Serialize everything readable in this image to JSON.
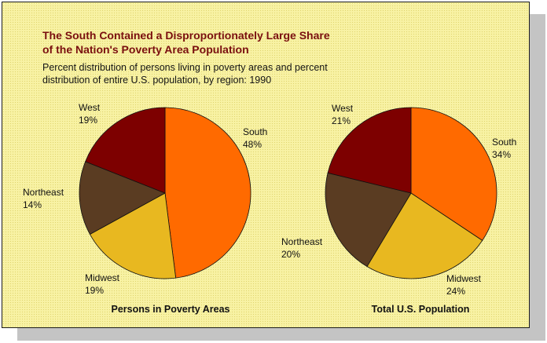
{
  "title_lines": [
    "The South Contained a Disproportionately Large Share",
    "of the Nation's Poverty Area Population"
  ],
  "subtitle_lines": [
    "Percent distribution of persons living in poverty areas and percent",
    "distribution of entire U.S. population, by region: 1990"
  ],
  "colors": {
    "South": "#ff6a00",
    "Midwest": "#e8b820",
    "Northeast": "#5a3c22",
    "West": "#7d0000",
    "background": "#f8f2a4",
    "title": "#7a0f0f"
  },
  "chart_data": [
    {
      "type": "pie",
      "title": "Persons in Poverty Areas",
      "slices": [
        {
          "label": "South",
          "value_label": "48%",
          "value": 48
        },
        {
          "label": "Midwest",
          "value_label": "19%",
          "value": 19
        },
        {
          "label": "Northeast",
          "value_label": "14%",
          "value": 14
        },
        {
          "label": "West",
          "value_label": "19%",
          "value": 19
        }
      ]
    },
    {
      "type": "pie",
      "title": "Total U.S. Population",
      "slices": [
        {
          "label": "South",
          "value_label": "34%",
          "value": 34
        },
        {
          "label": "Midwest",
          "value_label": "24%",
          "value": 24
        },
        {
          "label": "Northeast",
          "value_label": "20%",
          "value": 20
        },
        {
          "label": "West",
          "value_label": "21%",
          "value": 21
        }
      ]
    }
  ]
}
